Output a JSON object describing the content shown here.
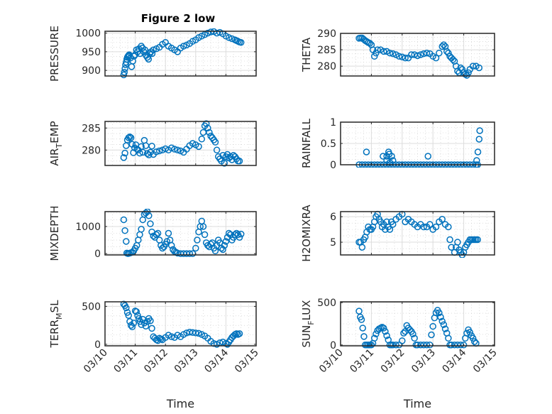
{
  "figure": {
    "title": "Figure 2 low",
    "marker_color": "#0072BD",
    "x_axis_label": "Time"
  },
  "chart_data": [
    {
      "type": "scatter",
      "id": "pressure",
      "title": "Figure 2 low",
      "ylabel": "PRESSURE",
      "ylabel_sub": "",
      "xlabel": "",
      "xlim": [
        0,
        5
      ],
      "ylim": [
        885,
        1005
      ],
      "yticks": [
        900,
        950,
        1000
      ],
      "ytick_labels": [
        "900",
        "950",
        "1000"
      ],
      "xticks": [
        0,
        1,
        2,
        3,
        4,
        5
      ],
      "xtick_labels": [],
      "grid": true,
      "minor_grid": true,
      "x": [
        0.62,
        0.64,
        0.66,
        0.68,
        0.7,
        0.72,
        0.74,
        0.76,
        0.78,
        0.8,
        0.84,
        0.88,
        0.92,
        0.96,
        1.0,
        1.04,
        1.08,
        1.12,
        1.16,
        1.2,
        1.24,
        1.28,
        1.32,
        1.36,
        1.4,
        1.44,
        1.48,
        1.52,
        1.56,
        1.6,
        1.7,
        1.8,
        1.9,
        2.0,
        2.1,
        2.2,
        2.3,
        2.4,
        2.5,
        2.6,
        2.7,
        2.8,
        2.9,
        3.0,
        3.1,
        3.2,
        3.3,
        3.4,
        3.5,
        3.6,
        3.7,
        3.8,
        3.9,
        4.0,
        4.1,
        4.2,
        4.3,
        4.35,
        4.4,
        4.45,
        4.5
      ],
      "y": [
        888,
        895,
        905,
        915,
        922,
        930,
        935,
        938,
        940,
        942,
        933,
        910,
        925,
        938,
        942,
        955,
        950,
        958,
        945,
        965,
        960,
        950,
        955,
        940,
        935,
        930,
        945,
        950,
        945,
        955,
        958,
        962,
        970,
        975,
        965,
        960,
        955,
        950,
        960,
        965,
        968,
        972,
        978,
        982,
        988,
        992,
        996,
        1000,
        1003,
        1004,
        1000,
        1002,
        998,
        992,
        988,
        985,
        982,
        980,
        978,
        976,
        975
      ]
    },
    {
      "type": "scatter",
      "id": "theta",
      "ylabel": "THETA",
      "ylabel_sub": "",
      "xlabel": "",
      "xlim": [
        0,
        5
      ],
      "ylim": [
        277,
        290
      ],
      "yticks": [
        280,
        285,
        290
      ],
      "ytick_labels": [
        "280",
        "285",
        "290"
      ],
      "xticks": [
        0,
        1,
        2,
        3,
        4,
        5
      ],
      "xtick_labels": [],
      "grid": true,
      "minor_grid": true,
      "x": [
        0.6,
        0.65,
        0.7,
        0.75,
        0.8,
        0.85,
        0.9,
        0.95,
        1.0,
        1.05,
        1.1,
        1.15,
        1.2,
        1.3,
        1.4,
        1.5,
        1.6,
        1.7,
        1.8,
        1.9,
        2.0,
        2.1,
        2.2,
        2.3,
        2.4,
        2.5,
        2.6,
        2.7,
        2.8,
        2.9,
        3.0,
        3.1,
        3.2,
        3.3,
        3.35,
        3.4,
        3.45,
        3.5,
        3.55,
        3.6,
        3.65,
        3.7,
        3.75,
        3.8,
        3.85,
        3.9,
        3.95,
        4.0,
        4.05,
        4.1,
        4.15,
        4.2,
        4.3,
        4.4,
        4.5
      ],
      "y": [
        288.5,
        288.6,
        288.6,
        288.2,
        287.8,
        287.5,
        287.2,
        287.0,
        286.5,
        285.0,
        283.0,
        284.0,
        285.0,
        285.0,
        284.5,
        284.5,
        284.0,
        283.8,
        283.5,
        283.0,
        282.8,
        282.5,
        282.5,
        283.5,
        283.5,
        283.2,
        283.5,
        283.8,
        284.0,
        283.8,
        283.0,
        282.5,
        284.0,
        286.0,
        286.5,
        286.0,
        284.5,
        284.0,
        283.0,
        282.5,
        282.0,
        281.5,
        280.0,
        278.5,
        278.0,
        279.5,
        279.0,
        278.0,
        277.5,
        277.2,
        278.0,
        279.0,
        280.0,
        280.0,
        279.5
      ]
    },
    {
      "type": "scatter",
      "id": "air-temp",
      "ylabel": "AIR",
      "ylabel_sub": "T",
      "ylabel_suffix": "EMP",
      "xlabel": "",
      "xlim": [
        0,
        5
      ],
      "ylim": [
        276.5,
        286.5
      ],
      "yticks": [
        280,
        285
      ],
      "ytick_labels": [
        "280",
        "285"
      ],
      "xticks": [
        0,
        1,
        2,
        3,
        4,
        5
      ],
      "xtick_labels": [],
      "grid": true,
      "minor_grid": true,
      "x": [
        0.62,
        0.66,
        0.7,
        0.74,
        0.78,
        0.82,
        0.86,
        0.9,
        0.94,
        0.98,
        1.02,
        1.06,
        1.1,
        1.15,
        1.2,
        1.25,
        1.3,
        1.35,
        1.4,
        1.45,
        1.5,
        1.55,
        1.6,
        1.7,
        1.8,
        1.9,
        2.0,
        2.1,
        2.2,
        2.3,
        2.4,
        2.5,
        2.6,
        2.7,
        2.8,
        2.9,
        3.0,
        3.1,
        3.2,
        3.25,
        3.3,
        3.35,
        3.4,
        3.45,
        3.5,
        3.55,
        3.6,
        3.65,
        3.7,
        3.75,
        3.8,
        3.85,
        3.9,
        3.95,
        4.0,
        4.05,
        4.1,
        4.15,
        4.2,
        4.25,
        4.3,
        4.35,
        4.4,
        4.45
      ],
      "y": [
        278.3,
        279.3,
        281.0,
        282.3,
        282.8,
        283.0,
        282.8,
        281.3,
        279.4,
        280.5,
        281.2,
        280.2,
        280.0,
        279.3,
        280.8,
        279.5,
        282.2,
        281.0,
        279.2,
        278.9,
        279.5,
        280.9,
        279.0,
        279.6,
        279.8,
        280.0,
        280.3,
        280.0,
        280.5,
        280.2,
        280.0,
        279.8,
        279.5,
        280.2,
        281.0,
        281.5,
        281.2,
        280.8,
        282.5,
        284.0,
        285.5,
        286.0,
        285.0,
        284.0,
        283.2,
        282.8,
        282.3,
        281.8,
        280.0,
        278.5,
        278.0,
        277.5,
        278.8,
        277.0,
        278.5,
        279.0,
        278.2,
        278.5,
        277.8,
        278.8,
        278.5,
        278.0,
        277.5,
        277.5
      ]
    },
    {
      "type": "scatter",
      "id": "rainfall",
      "ylabel": "RAINFALL",
      "ylabel_sub": "",
      "xlabel": "",
      "xlim": [
        0,
        5
      ],
      "ylim": [
        0,
        1
      ],
      "yticks": [
        0,
        0.5,
        1
      ],
      "ytick_labels": [
        "0",
        "0.5",
        "1"
      ],
      "xticks": [
        0,
        1,
        2,
        3,
        4,
        5
      ],
      "xtick_labels": [],
      "grid": true,
      "minor_grid": true,
      "x": [
        0.6,
        0.7,
        0.8,
        0.9,
        1.0,
        1.1,
        1.2,
        1.3,
        1.4,
        1.5,
        1.6,
        1.7,
        1.8,
        1.9,
        2.0,
        2.1,
        2.2,
        2.3,
        2.4,
        2.5,
        2.6,
        2.7,
        2.8,
        2.9,
        3.0,
        3.1,
        3.2,
        3.3,
        3.4,
        3.5,
        3.6,
        3.7,
        3.8,
        3.9,
        4.0,
        4.1,
        4.2,
        4.3,
        4.4,
        4.45,
        0.84,
        1.38,
        1.5,
        1.56,
        1.58,
        1.66,
        1.7,
        2.84,
        4.42,
        4.46,
        4.5,
        4.52,
        1.5,
        1.6
      ],
      "y": [
        0,
        0,
        0,
        0,
        0,
        0,
        0,
        0,
        0,
        0,
        0,
        0,
        0,
        0,
        0,
        0,
        0,
        0,
        0,
        0,
        0,
        0,
        0,
        0,
        0,
        0,
        0,
        0,
        0,
        0,
        0,
        0,
        0,
        0,
        0,
        0,
        0,
        0,
        0,
        0,
        0.3,
        0.2,
        0.2,
        0.3,
        0.25,
        0.2,
        0.1,
        0.2,
        0.1,
        0.3,
        0.6,
        0.8,
        0.1,
        0.05
      ]
    },
    {
      "type": "scatter",
      "id": "mixdepth",
      "ylabel": "MIXDEPTH",
      "ylabel_sub": "",
      "xlabel": "",
      "xlim": [
        0,
        5
      ],
      "ylim": [
        -50,
        1550
      ],
      "yticks": [
        0,
        1000
      ],
      "ytick_labels": [
        "0",
        "1000"
      ],
      "xticks": [
        0,
        1,
        2,
        3,
        4,
        5
      ],
      "xtick_labels": [],
      "grid": true,
      "minor_grid": true,
      "x": [
        0.62,
        0.66,
        0.7,
        0.72,
        0.76,
        0.8,
        0.85,
        0.9,
        0.95,
        1.0,
        1.05,
        1.1,
        1.15,
        1.2,
        1.25,
        1.3,
        1.35,
        1.4,
        1.45,
        1.5,
        1.55,
        1.6,
        1.65,
        1.7,
        1.75,
        1.8,
        1.85,
        1.9,
        1.95,
        2.0,
        2.05,
        2.1,
        2.15,
        2.2,
        2.25,
        2.3,
        2.35,
        2.4,
        2.5,
        2.6,
        2.7,
        2.8,
        2.9,
        3.0,
        3.05,
        3.1,
        3.15,
        3.2,
        3.25,
        3.3,
        3.35,
        3.4,
        3.45,
        3.5,
        3.55,
        3.6,
        3.65,
        3.7,
        3.75,
        3.8,
        3.85,
        3.9,
        3.95,
        4.0,
        4.05,
        4.1,
        4.15,
        4.2,
        4.25,
        4.3,
        4.35,
        4.4,
        4.45,
        4.5
      ],
      "y": [
        1250,
        850,
        450,
        20,
        0,
        10,
        30,
        50,
        100,
        200,
        300,
        500,
        700,
        900,
        1250,
        1450,
        1500,
        1550,
        1400,
        1100,
        800,
        650,
        600,
        700,
        750,
        500,
        300,
        200,
        250,
        350,
        450,
        750,
        500,
        300,
        150,
        80,
        50,
        20,
        0,
        0,
        0,
        0,
        0,
        200,
        500,
        800,
        1000,
        1200,
        1000,
        700,
        400,
        300,
        250,
        350,
        400,
        200,
        100,
        300,
        500,
        400,
        200,
        150,
        300,
        450,
        600,
        750,
        700,
        500,
        600,
        700,
        750,
        700,
        600,
        720
      ]
    },
    {
      "type": "scatter",
      "id": "h2omixra",
      "ylabel": "H2OMIXRA",
      "ylabel_sub": "",
      "xlabel": "",
      "xlim": [
        0,
        5
      ],
      "ylim": [
        4.5,
        6.2
      ],
      "yticks": [
        5,
        6
      ],
      "ytick_labels": [
        "5",
        "6"
      ],
      "xticks": [
        0,
        1,
        2,
        3,
        4,
        5
      ],
      "xtick_labels": [],
      "grid": true,
      "minor_grid": true,
      "x": [
        0.6,
        0.65,
        0.7,
        0.75,
        0.8,
        0.85,
        0.9,
        0.95,
        1.0,
        1.05,
        1.1,
        1.15,
        1.2,
        1.25,
        1.3,
        1.35,
        1.4,
        1.45,
        1.5,
        1.55,
        1.6,
        1.65,
        1.7,
        1.8,
        1.9,
        2.0,
        2.1,
        2.2,
        2.3,
        2.4,
        2.5,
        2.6,
        2.7,
        2.8,
        2.9,
        3.0,
        3.1,
        3.2,
        3.3,
        3.4,
        3.5,
        3.55,
        3.6,
        3.7,
        3.75,
        3.8,
        3.85,
        3.9,
        3.95,
        4.0,
        4.05,
        4.1,
        4.15,
        4.2,
        4.25,
        4.3,
        4.35,
        4.4,
        4.45
      ],
      "y": [
        5.0,
        5.0,
        4.8,
        5.1,
        5.2,
        5.4,
        5.6,
        5.5,
        5.5,
        5.6,
        5.8,
        6.0,
        6.1,
        5.9,
        5.8,
        5.6,
        5.7,
        5.5,
        5.8,
        5.6,
        5.5,
        5.8,
        5.7,
        5.9,
        6.0,
        6.1,
        5.8,
        5.9,
        5.8,
        5.7,
        5.6,
        5.7,
        5.6,
        5.6,
        5.7,
        5.5,
        5.6,
        5.8,
        5.9,
        5.7,
        5.6,
        5.1,
        4.8,
        4.6,
        4.8,
        5.0,
        4.7,
        4.6,
        4.5,
        4.6,
        4.8,
        4.9,
        5.0,
        5.1,
        5.1,
        5.1,
        5.1,
        5.1,
        5.1
      ]
    },
    {
      "type": "scatter",
      "id": "terr-msl",
      "ylabel": "TERR",
      "ylabel_sub": "M",
      "ylabel_suffix": "SL",
      "xlabel": "Time",
      "xlim": [
        0,
        5
      ],
      "ylim": [
        -20,
        560
      ],
      "yticks": [
        0,
        500
      ],
      "ytick_labels": [
        "0",
        "500"
      ],
      "xticks": [
        0,
        1,
        2,
        3,
        4,
        5
      ],
      "xtick_labels": [
        "03/10",
        "03/11",
        "03/12",
        "03/13",
        "03/14",
        "03/15"
      ],
      "grid": true,
      "minor_grid": true,
      "x": [
        0.62,
        0.66,
        0.7,
        0.74,
        0.78,
        0.82,
        0.86,
        0.9,
        0.95,
        1.0,
        1.04,
        1.08,
        1.12,
        1.16,
        1.2,
        1.25,
        1.3,
        1.35,
        1.4,
        1.45,
        1.5,
        1.55,
        1.6,
        1.65,
        1.7,
        1.75,
        1.8,
        1.85,
        1.9,
        2.0,
        2.1,
        2.2,
        2.3,
        2.4,
        2.5,
        2.6,
        2.7,
        2.8,
        2.9,
        3.0,
        3.1,
        3.2,
        3.3,
        3.4,
        3.5,
        3.6,
        3.7,
        3.8,
        3.9,
        4.0,
        4.05,
        4.1,
        4.15,
        4.2,
        4.25,
        4.3,
        4.35,
        4.4,
        4.45
      ],
      "y": [
        530,
        510,
        480,
        420,
        380,
        300,
        250,
        230,
        280,
        440,
        430,
        380,
        340,
        300,
        260,
        330,
        280,
        240,
        300,
        340,
        310,
        210,
        100,
        80,
        60,
        50,
        80,
        70,
        60,
        90,
        120,
        100,
        90,
        120,
        100,
        130,
        150,
        160,
        155,
        150,
        145,
        130,
        110,
        80,
        40,
        10,
        0,
        20,
        30,
        10,
        0,
        30,
        60,
        90,
        110,
        130,
        140,
        130,
        140
      ]
    },
    {
      "type": "scatter",
      "id": "sun-flux",
      "ylabel": "SUN",
      "ylabel_sub": "F",
      "ylabel_suffix": "LUX",
      "xlabel": "Time",
      "xlim": [
        0,
        5
      ],
      "ylim": [
        -10,
        510
      ],
      "yticks": [
        0,
        500
      ],
      "ytick_labels": [
        "0",
        "500"
      ],
      "xticks": [
        0,
        1,
        2,
        3,
        4,
        5
      ],
      "xtick_labels": [
        "03/10",
        "03/11",
        "03/12",
        "03/13",
        "03/14",
        "03/15"
      ],
      "grid": true,
      "minor_grid": true,
      "x": [
        0.6,
        0.64,
        0.68,
        0.72,
        0.76,
        0.8,
        0.85,
        0.9,
        0.95,
        1.0,
        1.05,
        1.1,
        1.15,
        1.2,
        1.25,
        1.3,
        1.35,
        1.4,
        1.45,
        1.5,
        1.55,
        1.6,
        1.65,
        1.7,
        1.8,
        1.9,
        2.0,
        2.05,
        2.1,
        2.15,
        2.2,
        2.25,
        2.3,
        2.35,
        2.4,
        2.45,
        2.5,
        2.6,
        2.7,
        2.8,
        2.9,
        2.95,
        3.0,
        3.05,
        3.1,
        3.15,
        3.2,
        3.25,
        3.3,
        3.35,
        3.4,
        3.45,
        3.5,
        3.55,
        3.6,
        3.7,
        3.8,
        3.9,
        4.0,
        4.05,
        4.1,
        4.15,
        4.2,
        4.25,
        4.3,
        4.35,
        4.4
      ],
      "y": [
        400,
        330,
        300,
        200,
        100,
        0,
        0,
        0,
        0,
        0,
        20,
        80,
        130,
        170,
        190,
        200,
        210,
        200,
        160,
        110,
        60,
        0,
        0,
        0,
        0,
        0,
        50,
        140,
        160,
        230,
        200,
        180,
        160,
        130,
        80,
        0,
        0,
        0,
        0,
        0,
        0,
        120,
        220,
        320,
        380,
        410,
        380,
        330,
        280,
        240,
        190,
        140,
        80,
        0,
        0,
        0,
        0,
        0,
        0,
        80,
        140,
        180,
        150,
        110,
        80,
        40,
        20
      ]
    }
  ]
}
